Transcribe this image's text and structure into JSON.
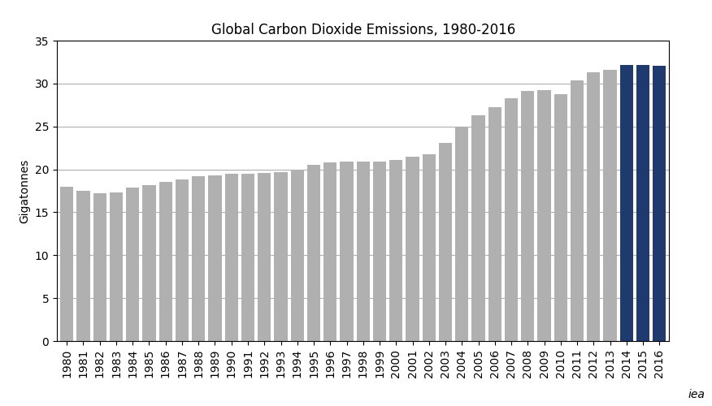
{
  "chart_data": {
    "type": "bar",
    "title": "Global Carbon Dioxide Emissions, 1980-2016",
    "y_label": "Gigatonnes",
    "annotation": "iea",
    "x": [
      1980,
      1981,
      1982,
      1983,
      1984,
      1985,
      1986,
      1987,
      1988,
      1989,
      1990,
      1991,
      1992,
      1993,
      1994,
      1995,
      1996,
      1997,
      1998,
      1999,
      2000,
      2001,
      2002,
      2003,
      2004,
      2005,
      2006,
      2007,
      2008,
      2009,
      2010,
      2011,
      2012,
      2013,
      2014,
      2015,
      2016
    ],
    "values": [
      18.0,
      17.5,
      17.2,
      17.3,
      17.9,
      18.2,
      18.5,
      18.8,
      19.2,
      19.3,
      19.5,
      19.5,
      19.6,
      19.7,
      20.0,
      20.5,
      20.8,
      20.9,
      20.9,
      20.9,
      21.1,
      21.5,
      21.8,
      23.1,
      24.9,
      26.3,
      27.2,
      28.3,
      29.1,
      29.2,
      28.8,
      30.4,
      31.3,
      31.6,
      32.2,
      32.2,
      32.1
    ],
    "colors": [
      "#b0b0b0",
      "#b0b0b0",
      "#b0b0b0",
      "#b0b0b0",
      "#b0b0b0",
      "#b0b0b0",
      "#b0b0b0",
      "#b0b0b0",
      "#b0b0b0",
      "#b0b0b0",
      "#b0b0b0",
      "#b0b0b0",
      "#b0b0b0",
      "#b0b0b0",
      "#b0b0b0",
      "#b0b0b0",
      "#b0b0b0",
      "#b0b0b0",
      "#b0b0b0",
      "#b0b0b0",
      "#b0b0b0",
      "#b0b0b0",
      "#b0b0b0",
      "#b0b0b0",
      "#b0b0b0",
      "#b0b0b0",
      "#b0b0b0",
      "#b0b0b0",
      "#b0b0b0",
      "#b0b0b0",
      "#b0b0b0",
      "#b0b0b0",
      "#b0b0b0",
      "#b0b0b0",
      "#1f3a6e",
      "#1f3a6e",
      "#1f3a6e"
    ],
    "xlim": [
      1979.4,
      2016.6
    ],
    "xticks": [
      1980,
      1981,
      1982,
      1983,
      1984,
      1985,
      1986,
      1987,
      1988,
      1989,
      1990,
      1991,
      1992,
      1993,
      1994,
      1995,
      1996,
      1997,
      1998,
      1999,
      2000,
      2001,
      2002,
      2003,
      2004,
      2005,
      2006,
      2007,
      2008,
      2009,
      2010,
      2011,
      2012,
      2013,
      2014,
      2015,
      2016
    ],
    "ylim": [
      0,
      35
    ],
    "yticks": [
      0,
      5,
      10,
      15,
      20,
      25,
      30,
      35
    ],
    "grid": "y"
  }
}
